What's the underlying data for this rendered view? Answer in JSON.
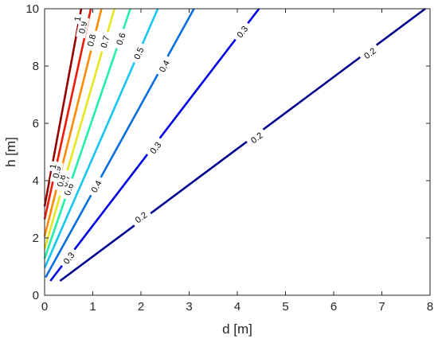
{
  "chart_data": {
    "type": "contour",
    "xlabel": "d [m]",
    "ylabel": "h [m]",
    "xlim": [
      0,
      8
    ],
    "ylim": [
      0,
      10
    ],
    "xticks": [
      "0",
      "1",
      "2",
      "3",
      "4",
      "5",
      "6",
      "7",
      "8"
    ],
    "yticks": [
      "0",
      "2",
      "4",
      "6",
      "8",
      "10"
    ],
    "grid": false,
    "levels": [
      {
        "value": "0.2",
        "color": "#00008f",
        "points": [
          [
            0.32,
            0.5
          ],
          [
            7.9,
            10
          ]
        ],
        "labels": [
          {
            "text": "0.2",
            "x": 2.0,
            "y": 2.72
          },
          {
            "text": "0.2",
            "x": 4.4,
            "y": 5.5
          },
          {
            "text": "0.2",
            "x": 6.75,
            "y": 8.45
          }
        ]
      },
      {
        "value": "0.3",
        "color": "#0000e6",
        "points": [
          [
            0.12,
            0.5
          ],
          [
            4.45,
            10
          ]
        ],
        "labels": [
          {
            "text": "0.3",
            "x": 0.5,
            "y": 1.3
          },
          {
            "text": "0.3",
            "x": 2.3,
            "y": 5.15
          },
          {
            "text": "0.3",
            "x": 4.1,
            "y": 9.2
          }
        ]
      },
      {
        "value": "0.4",
        "color": "#0a6edc",
        "points": [
          [
            0.02,
            0.62
          ],
          [
            3.1,
            10
          ]
        ],
        "labels": [
          {
            "text": "0.4",
            "x": 1.07,
            "y": 3.8
          },
          {
            "text": "0.4",
            "x": 2.48,
            "y": 8.0
          }
        ]
      },
      {
        "value": "0.5",
        "color": "#16c6f0",
        "points": [
          [
            0.0,
            0.95
          ],
          [
            2.35,
            10
          ]
        ],
        "labels": [
          {
            "text": "0.5",
            "x": 0.48,
            "y": 3.75
          },
          {
            "text": "0.5",
            "x": 1.95,
            "y": 8.45
          }
        ]
      },
      {
        "value": "0.6",
        "color": "#21f0a8",
        "points": [
          [
            0.0,
            1.28
          ],
          [
            1.78,
            10
          ]
        ],
        "labels": [
          {
            "text": "0.6",
            "x": 0.5,
            "y": 3.7
          },
          {
            "text": "0.6",
            "x": 1.58,
            "y": 8.95
          }
        ]
      },
      {
        "value": "0.7",
        "color": "#e6e61a",
        "points": [
          [
            0.0,
            1.62
          ],
          [
            1.45,
            10
          ]
        ],
        "labels": [
          {
            "text": "0.7",
            "x": 0.43,
            "y": 4.0
          },
          {
            "text": "0.7",
            "x": 1.25,
            "y": 8.85
          }
        ]
      },
      {
        "value": "0.8",
        "color": "#ff8c00",
        "points": [
          [
            0.0,
            2.05
          ],
          [
            1.18,
            10
          ]
        ],
        "labels": [
          {
            "text": "0.8",
            "x": 0.34,
            "y": 4.0
          },
          {
            "text": "0.8",
            "x": 0.97,
            "y": 8.9
          }
        ]
      },
      {
        "value": "0.9",
        "color": "#f01a0a",
        "points": [
          [
            0.0,
            2.65
          ],
          [
            0.96,
            10
          ]
        ],
        "labels": [
          {
            "text": "0.9",
            "x": 0.25,
            "y": 4.3
          },
          {
            "text": "0.9",
            "x": 0.79,
            "y": 9.35
          }
        ]
      },
      {
        "value": "1",
        "color": "#960000",
        "points": [
          [
            0.0,
            3.1
          ],
          [
            0.76,
            10
          ]
        ],
        "labels": [
          {
            "text": "1",
            "x": 0.17,
            "y": 4.5
          },
          {
            "text": "1",
            "x": 0.68,
            "y": 9.65
          }
        ]
      }
    ]
  }
}
